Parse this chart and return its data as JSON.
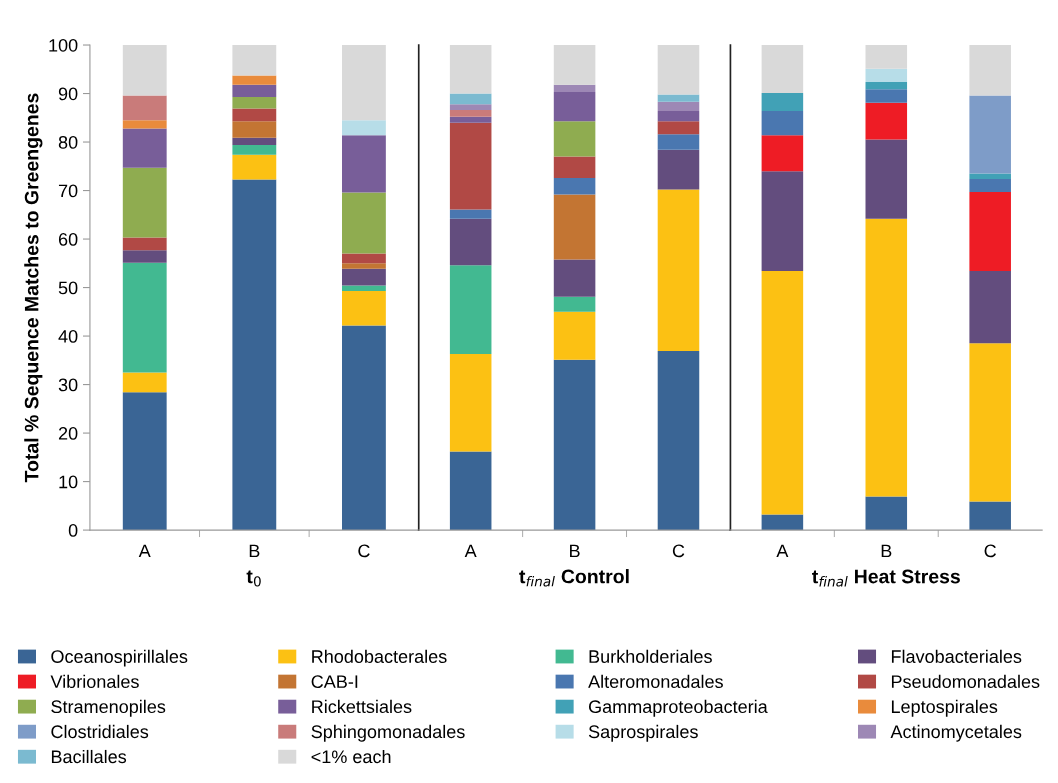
{
  "chart_data": [
    {
      "type": "bar",
      "stacked": true,
      "xlabel": "t$_{0}$",
      "ylabel": "Total % Sequence Matches to Greengenes",
      "categories": [
        "A",
        "B",
        "C"
      ],
      "ylim": [
        0,
        100
      ],
      "yticks": [
        0,
        10,
        20,
        30,
        40,
        50,
        60,
        70,
        80,
        90,
        100
      ],
      "legend": "bottom",
      "series": [
        {
          "name": "Oceanospirillales",
          "color": "#3a6595",
          "values": [
            28.4,
            72.3,
            42.2
          ]
        },
        {
          "name": "Rhodobacterales",
          "color": "#fcc113",
          "values": [
            4.1,
            5.1,
            7.1
          ]
        },
        {
          "name": "Burkholderiales",
          "color": "#42b991",
          "values": [
            22.6,
            2.0,
            1.1
          ]
        },
        {
          "name": "Flavobacteriales",
          "color": "#634d7e",
          "values": [
            2.6,
            1.5,
            3.5
          ]
        },
        {
          "name": "Vibrionales",
          "color": "#ee1c25",
          "values": [
            null,
            null,
            null
          ]
        },
        {
          "name": "CAB-I",
          "color": "#c37533",
          "values": [
            null,
            3.4,
            1.1
          ]
        },
        {
          "name": "Alteromonadales",
          "color": "#4a77b0",
          "values": [
            null,
            null,
            null
          ]
        },
        {
          "name": "Pseudomonadales",
          "color": "#b14945",
          "values": [
            2.6,
            2.6,
            2.0
          ]
        },
        {
          "name": "Stramenopiles",
          "color": "#8fac50",
          "values": [
            14.4,
            2.4,
            12.6
          ]
        },
        {
          "name": "Rickettsiales",
          "color": "#785e99",
          "values": [
            8.1,
            2.5,
            11.8
          ]
        },
        {
          "name": "Gammaproteobacteria",
          "color": "#41a1b6",
          "values": [
            null,
            null,
            null
          ]
        },
        {
          "name": "Leptospirales",
          "color": "#e98b3c",
          "values": [
            1.7,
            1.9,
            null
          ]
        },
        {
          "name": "Clostridiales",
          "color": "#7e9cc8",
          "values": [
            null,
            null,
            null
          ]
        },
        {
          "name": "Sphingomonadales",
          "color": "#c97b7a",
          "values": [
            5.1,
            null,
            null
          ]
        },
        {
          "name": "Saprospirales",
          "color": "#b7dde8",
          "values": [
            null,
            null,
            3.1
          ]
        },
        {
          "name": "Actinomycetales",
          "color": "#9d88b5",
          "values": [
            null,
            null,
            null
          ]
        },
        {
          "name": "Bacillales",
          "color": "#7bbad0",
          "values": [
            null,
            null,
            null
          ]
        },
        {
          "name": "<1% each",
          "color": "#d9d9d9",
          "values": [
            10.4,
            6.3,
            15.5
          ]
        }
      ]
    },
    {
      "type": "bar",
      "stacked": true,
      "xlabel": "t$_{final}$ Control",
      "categories": [
        "A",
        "B",
        "C"
      ],
      "ylim": [
        0,
        100
      ],
      "tick_labels": "x",
      "series": [
        {
          "color": "#3a6595",
          "values": [
            16.2,
            35.1,
            36.9
          ]
        },
        {
          "color": "#fcc113",
          "values": [
            20.1,
            9.9,
            33.3
          ]
        },
        {
          "color": "#42b991",
          "values": [
            18.3,
            3.1,
            null
          ]
        },
        {
          "color": "#634d7e",
          "values": [
            9.6,
            7.7,
            8.2
          ]
        },
        {
          "color": "#c37533",
          "values": [
            null,
            13.4,
            null
          ]
        },
        {
          "color": "#4a77b0",
          "values": [
            1.9,
            3.4,
            3.2
          ]
        },
        {
          "color": "#b14945",
          "values": [
            17.9,
            4.4,
            2.7
          ]
        },
        {
          "color": "#8fac50",
          "values": [
            null,
            7.3,
            null
          ]
        },
        {
          "color": "#785e99",
          "values": [
            1.2,
            6.0,
            2.1
          ]
        },
        {
          "color": "#c97b7a",
          "values": [
            1.4,
            null,
            null
          ]
        },
        {
          "color": "#9d88b5",
          "values": [
            1.2,
            1.5,
            1.9
          ]
        },
        {
          "color": "#7bbad0",
          "values": [
            2.2,
            null,
            1.5
          ]
        },
        {
          "color": "#d9d9d9",
          "values": [
            10.0,
            8.2,
            10.2
          ]
        }
      ]
    },
    {
      "type": "bar",
      "stacked": true,
      "xlabel": "t$_{final}$ Heat Stress",
      "categories": [
        "A",
        "B",
        "C"
      ],
      "ylim": [
        0,
        100
      ],
      "tick_labels": "x",
      "series": [
        {
          "color": "#3a6595",
          "values": [
            3.2,
            6.9,
            5.9
          ]
        },
        {
          "color": "#fcc113",
          "values": [
            50.2,
            57.3,
            32.6
          ]
        },
        {
          "color": "#634d7e",
          "values": [
            20.6,
            16.3,
            14.9
          ]
        },
        {
          "color": "#ee1c25",
          "values": [
            7.4,
            7.6,
            16.3
          ]
        },
        {
          "color": "#4a77b0",
          "values": [
            5.0,
            2.8,
            2.7
          ]
        },
        {
          "color": "#41a1b6",
          "values": [
            3.7,
            1.5,
            1.1
          ]
        },
        {
          "color": "#7e9cc8",
          "values": [
            null,
            null,
            16.1
          ]
        },
        {
          "color": "#b7dde8",
          "values": [
            null,
            2.7,
            null
          ]
        },
        {
          "color": "#d9d9d9",
          "values": [
            9.9,
            4.9,
            10.4
          ]
        }
      ]
    }
  ]
}
